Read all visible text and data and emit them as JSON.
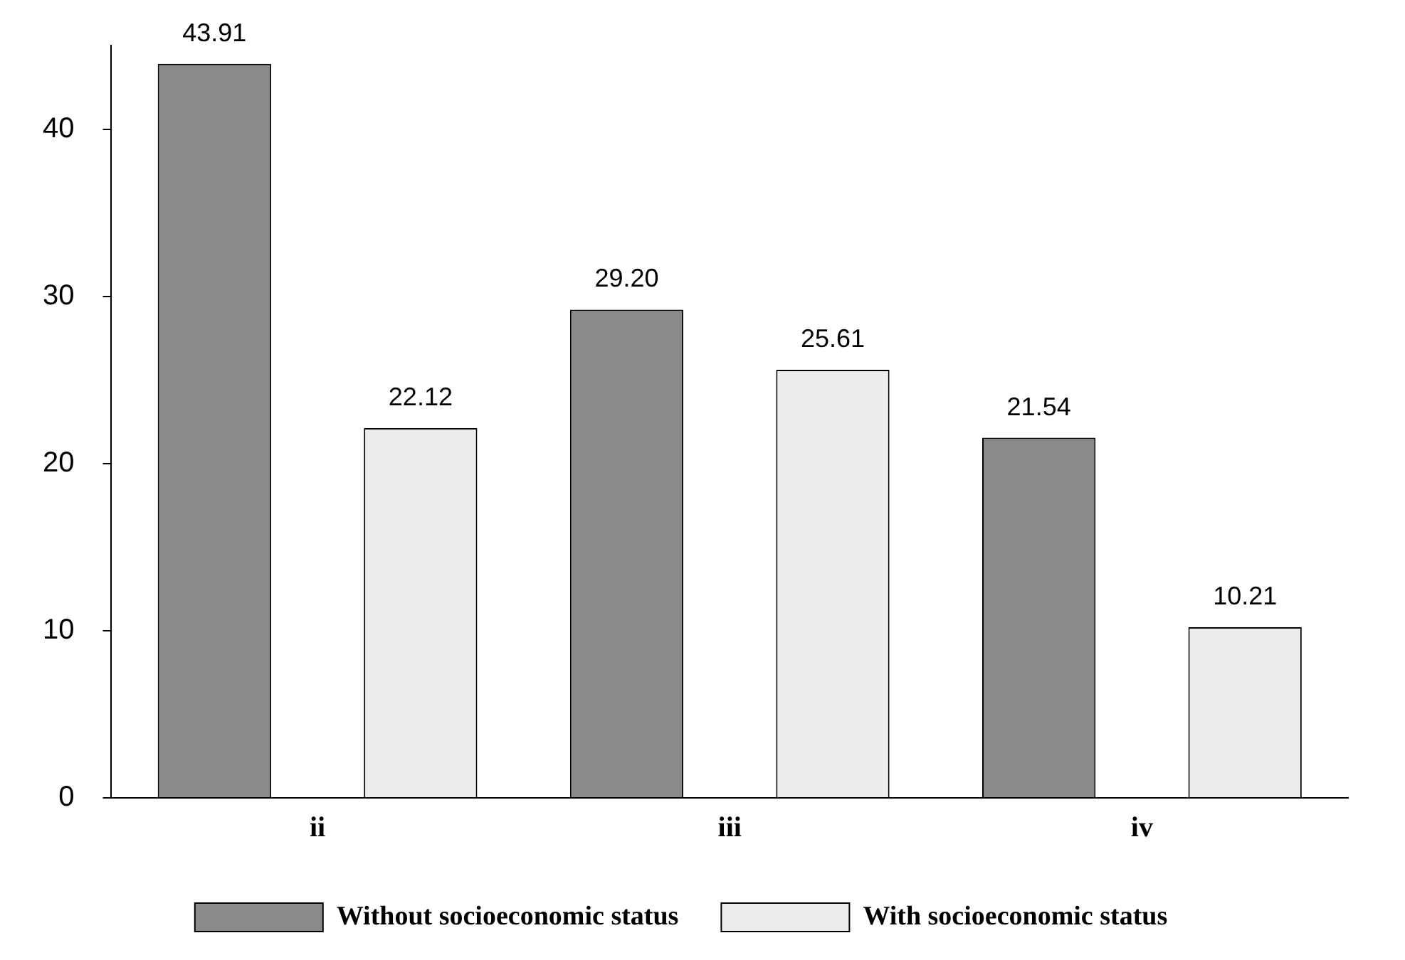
{
  "chart_data": {
    "type": "bar",
    "categories": [
      "ii",
      "iii",
      "iv"
    ],
    "series": [
      {
        "name": "Without socioeconomic status",
        "color": "#8a8a8a",
        "values": [
          43.91,
          29.2,
          21.54
        ]
      },
      {
        "name": "With socioeconomic status",
        "color": "#ececec",
        "values": [
          22.12,
          25.61,
          10.21
        ]
      }
    ],
    "ylim": [
      0,
      45
    ],
    "yticks": [
      0,
      10,
      20,
      30,
      40
    ],
    "grid": false,
    "legend": "bottom",
    "value_labels": [
      [
        "43.91",
        "29.20",
        "21.54"
      ],
      [
        "22.12",
        "25.61",
        "10.21"
      ]
    ]
  }
}
